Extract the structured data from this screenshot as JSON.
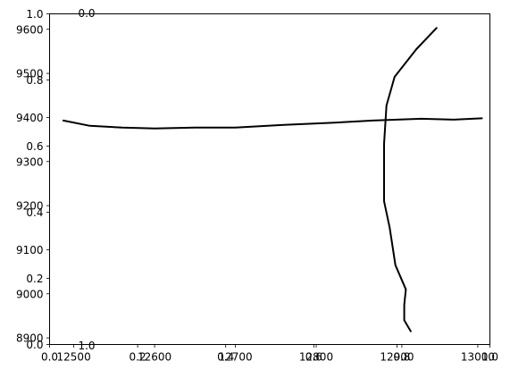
{
  "chart_data": {
    "type": "line",
    "title": "",
    "overlapping_axes": {
      "generic_ticks": [
        "0.0",
        "0.2",
        "0.4",
        "0.6",
        "0.8",
        "1.0"
      ],
      "top_axis_label": "0.0",
      "lower_axis_label": "1.0"
    },
    "x_ticks": [
      "12500",
      "12600",
      "12700",
      "12800",
      "12900",
      "13000"
    ],
    "y_ticks": [
      "8900",
      "9000",
      "9100",
      "9200",
      "9300",
      "9400",
      "9500",
      "9600"
    ],
    "xlim": [
      12470,
      13015
    ],
    "ylim": [
      8885,
      9635
    ],
    "series": [
      {
        "style": "horizontal-profile",
        "color": "#000000",
        "points": [
          {
            "x": 12487,
            "y": 9393
          },
          {
            "x": 12520,
            "y": 9381
          },
          {
            "x": 12560,
            "y": 9377
          },
          {
            "x": 12600,
            "y": 9375
          },
          {
            "x": 12650,
            "y": 9377
          },
          {
            "x": 12700,
            "y": 9377
          },
          {
            "x": 12760,
            "y": 9383
          },
          {
            "x": 12820,
            "y": 9388
          },
          {
            "x": 12870,
            "y": 9393
          },
          {
            "x": 12930,
            "y": 9397
          },
          {
            "x": 12970,
            "y": 9395
          },
          {
            "x": 13005,
            "y": 9398
          }
        ]
      },
      {
        "style": "vertical-profile",
        "color": "#000000",
        "points": [
          {
            "x": 12949,
            "y": 9603
          },
          {
            "x": 12924,
            "y": 9555
          },
          {
            "x": 12897,
            "y": 9492
          },
          {
            "x": 12887,
            "y": 9427
          },
          {
            "x": 12884,
            "y": 9340
          },
          {
            "x": 12884,
            "y": 9210
          },
          {
            "x": 12891,
            "y": 9150
          },
          {
            "x": 12898,
            "y": 9065
          },
          {
            "x": 12911,
            "y": 9010
          },
          {
            "x": 12909,
            "y": 8975
          },
          {
            "x": 12909,
            "y": 8940
          },
          {
            "x": 12917,
            "y": 8915
          }
        ]
      }
    ]
  }
}
